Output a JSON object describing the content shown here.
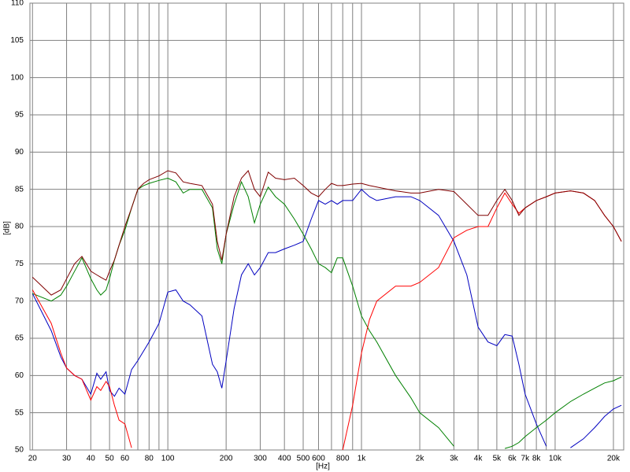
{
  "chart_data": {
    "type": "line",
    "x_label": "[Hz]",
    "y_label": "[dB]",
    "xscale": "log",
    "grid": true,
    "xlim": [
      19.4,
      22600
    ],
    "ylim": [
      50,
      110
    ],
    "yticks": [
      50,
      55,
      60,
      65,
      70,
      75,
      80,
      85,
      90,
      95,
      100,
      105,
      110
    ],
    "xticks": [
      20,
      30,
      40,
      50,
      60,
      80,
      100,
      200,
      300,
      400,
      500,
      600,
      800,
      {
        "value": 1000,
        "label": "1k"
      },
      {
        "value": 2000,
        "label": "2k"
      },
      {
        "value": 3000,
        "label": "3k"
      },
      {
        "value": 4000,
        "label": "4k"
      },
      {
        "value": 5000,
        "label": "5k"
      },
      {
        "value": 6000,
        "label": "6k"
      },
      {
        "value": 7000,
        "label": "7k"
      },
      {
        "value": 8000,
        "label": "8k"
      },
      {
        "value": 10000,
        "label": "10k"
      },
      {
        "value": 20000,
        "label": "20k"
      }
    ],
    "xminor": [
      70,
      90,
      700,
      900,
      9000
    ],
    "x": [
      20,
      25,
      28,
      30,
      33,
      36,
      40,
      43,
      45,
      48,
      50,
      53,
      56,
      60,
      65,
      70,
      75,
      80,
      90,
      100,
      110,
      120,
      130,
      150,
      170,
      180,
      190,
      200,
      220,
      240,
      260,
      280,
      300,
      330,
      360,
      400,
      450,
      500,
      550,
      600,
      650,
      700,
      750,
      800,
      900,
      1000,
      1100,
      1200,
      1500,
      1800,
      2000,
      2500,
      3000,
      3500,
      4000,
      4500,
      5000,
      5500,
      6000,
      6500,
      7000,
      8000,
      9000,
      10000,
      12000,
      14000,
      16000,
      18000,
      20000,
      22000
    ],
    "series": [
      {
        "color": "#0000c0",
        "values": [
          71,
          66,
          62.5,
          61,
          60,
          59.5,
          57.5,
          60.3,
          59.5,
          60.5,
          58,
          57.2,
          58.3,
          57.5,
          60.8,
          62,
          63.3,
          64.5,
          67,
          71.2,
          71.5,
          70,
          69.5,
          68,
          61.5,
          60.5,
          58.3,
          62,
          69,
          73.5,
          75,
          73.5,
          74.5,
          76.5,
          76.5,
          77,
          77.5,
          78,
          81,
          83.5,
          83,
          83.5,
          83,
          83.5,
          83.5,
          85,
          84,
          83.5,
          84,
          84,
          83.5,
          81.5,
          78,
          73.5,
          66.5,
          64.5,
          64,
          65.5,
          65.3,
          61.5,
          57.5,
          53.5,
          50.5,
          null,
          50.3,
          51.5,
          53,
          54.5,
          55.5,
          56
        ]
      },
      {
        "color": "#008000",
        "values": [
          71,
          70,
          70.8,
          72,
          74,
          75.8,
          73,
          71.5,
          70.8,
          71.5,
          73,
          75.5,
          77.5,
          79.5,
          82.5,
          85,
          85.5,
          85.8,
          86.2,
          86.5,
          86,
          84.5,
          85,
          85,
          82.5,
          77,
          75,
          79,
          83,
          86,
          84,
          80.5,
          83,
          85.3,
          84,
          83,
          81,
          79,
          77,
          75,
          74.5,
          73.8,
          75.8,
          75.8,
          72,
          68,
          66,
          64.5,
          60,
          57,
          55,
          53,
          50.5,
          null,
          null,
          null,
          null,
          50.2,
          50.5,
          51,
          51.8,
          53,
          54,
          55,
          56.5,
          57.5,
          58.3,
          59,
          59.3,
          59.8
        ]
      },
      {
        "color": "#ff0000",
        "values": [
          71.5,
          67,
          63,
          61,
          60,
          59.5,
          56.7,
          58.5,
          58,
          59.2,
          58.5,
          56,
          54,
          53.5,
          50.3,
          null,
          null,
          null,
          null,
          null,
          null,
          null,
          null,
          null,
          null,
          null,
          null,
          null,
          null,
          null,
          null,
          null,
          null,
          null,
          null,
          null,
          null,
          null,
          null,
          null,
          null,
          null,
          null,
          50,
          56,
          63,
          67.5,
          70,
          72,
          72,
          72.5,
          74.5,
          78.5,
          79.5,
          80,
          80,
          82.5,
          84.5,
          83,
          81.8,
          82.5,
          83.5,
          84,
          84.5,
          84.8,
          84.5,
          83.5,
          81.5,
          80,
          78
        ]
      },
      {
        "color": "#800000",
        "values": [
          73.2,
          70.8,
          71.5,
          73,
          75,
          76,
          74,
          73.5,
          73.2,
          72.8,
          74,
          75.5,
          77.5,
          80,
          82.5,
          85,
          85.8,
          86.3,
          86.8,
          87.5,
          87.2,
          86,
          85.8,
          85.5,
          83,
          78,
          75.5,
          79,
          84,
          86.5,
          87.5,
          85,
          84,
          87.3,
          86.5,
          86.3,
          86.5,
          85.5,
          84.5,
          84,
          85,
          85.8,
          85.5,
          85.5,
          85.7,
          85.8,
          85.5,
          85.3,
          84.8,
          84.5,
          84.5,
          85,
          84.7,
          83,
          81.5,
          81.5,
          83.5,
          85,
          83.5,
          81.5,
          82.5,
          83.5,
          84,
          84.5,
          84.8,
          84.5,
          83.5,
          81.5,
          80,
          78
        ]
      }
    ]
  }
}
